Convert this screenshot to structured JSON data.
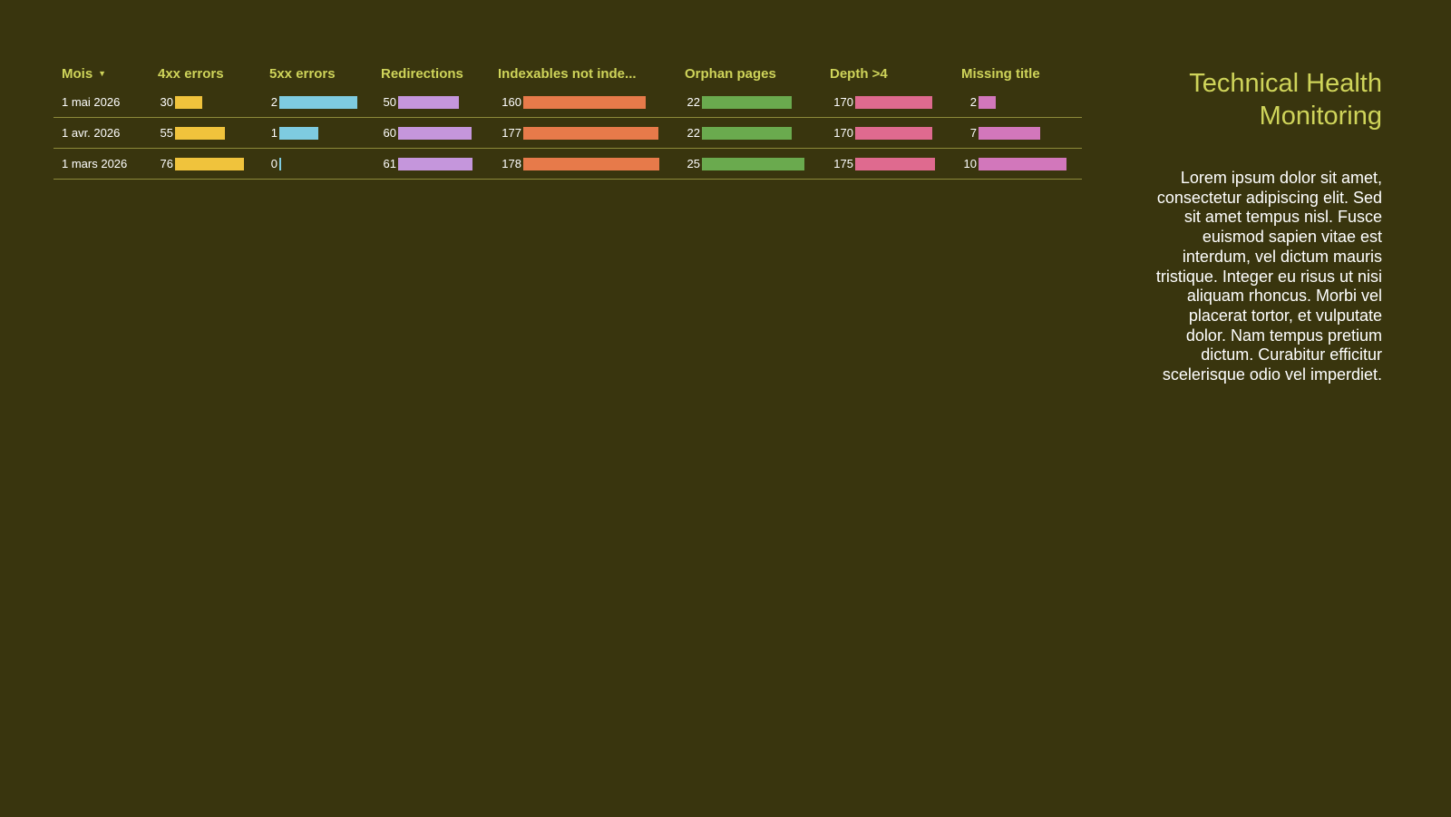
{
  "sidebar": {
    "title": "Technical Health Monitoring",
    "text": "Lorem ipsum dolor sit amet, consectetur adipiscing elit. Sed sit amet tempus nisl. Fusce euismod sapien vitae est interdum, vel dictum mauris tristique. Integer eu risus ut nisi aliquam rhoncus. Morbi vel placerat tortor, et vulputate dolor. Nam tempus pretium dictum. Curabitur efficitur scelerisque odio vel imperdiet."
  },
  "table": {
    "month_header": "Mois",
    "sort_icon": "sort-desc-icon"
  },
  "chart_data": {
    "type": "table",
    "categories": [
      "1 mai 2026",
      "1 avr. 2026",
      "1 mars 2026"
    ],
    "series": [
      {
        "name": "4xx errors",
        "values": [
          30,
          55,
          76
        ],
        "color": "#f0c33c"
      },
      {
        "name": "5xx errors",
        "values": [
          2,
          1,
          0
        ],
        "color": "#7ecbe0"
      },
      {
        "name": "Redirections",
        "values": [
          50,
          60,
          61
        ],
        "color": "#c596dc"
      },
      {
        "name": "Indexables not inde...",
        "values": [
          160,
          177,
          178
        ],
        "color": "#e77a4a"
      },
      {
        "name": "Orphan pages",
        "values": [
          22,
          22,
          25
        ],
        "color": "#6aaa4e"
      },
      {
        "name": "Depth >4",
        "values": [
          170,
          170,
          175
        ],
        "color": "#df6a8f"
      },
      {
        "name": "Missing title",
        "values": [
          2,
          7,
          10
        ],
        "color": "#d277bb"
      }
    ]
  }
}
